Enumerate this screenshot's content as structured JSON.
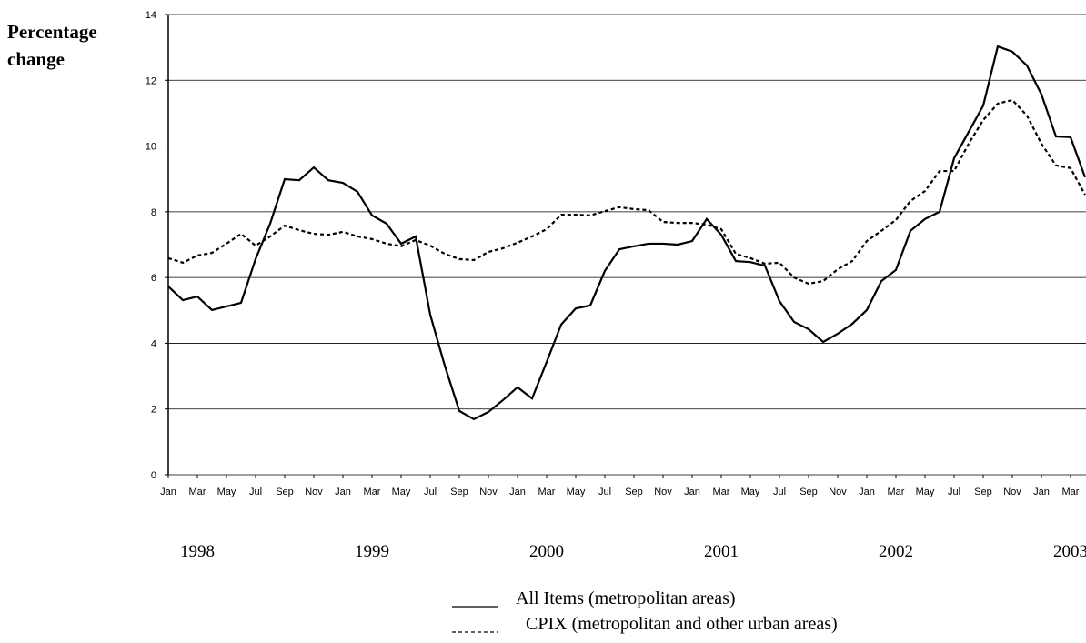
{
  "chart_data": {
    "type": "line",
    "y_axis_label": "Percentage change",
    "categories": [
      "Jan",
      null,
      "Mar",
      null,
      "May",
      null,
      "Jul",
      null,
      "Sep",
      null,
      "Nov",
      null,
      "Jan",
      null,
      "Mar",
      null,
      "May",
      null,
      "Jul",
      null,
      "Sep",
      null,
      "Nov",
      null,
      "Jan",
      null,
      "Mar",
      null,
      "May",
      null,
      "Jul",
      null,
      "Sep",
      null,
      "Nov",
      null,
      "Jan",
      null,
      "Mar",
      null,
      "May",
      null,
      "Jul",
      null,
      "Sep",
      null,
      "Nov",
      null,
      "Jan",
      null,
      "Mar",
      null,
      "May",
      null,
      "Jul",
      null,
      "Sep",
      null,
      "Nov",
      null,
      "Jan",
      null,
      "Mar",
      null
    ],
    "years": [
      "1998",
      "1999",
      "2000",
      "2001",
      "2002",
      "2003"
    ],
    "series": [
      {
        "name": "All Items (metropolitan areas)",
        "color": "#000000",
        "dashed": false,
        "values": [
          5.73,
          5.31,
          5.42,
          5.01,
          5.12,
          5.23,
          6.56,
          7.64,
          8.99,
          8.96,
          9.35,
          8.96,
          8.88,
          8.61,
          7.89,
          7.64,
          7.03,
          7.25,
          4.87,
          3.32,
          1.94,
          1.69,
          1.91,
          2.27,
          2.66,
          2.32,
          3.43,
          4.57,
          5.06,
          5.15,
          6.2,
          6.86,
          6.95,
          7.03,
          7.03,
          7.0,
          7.11,
          7.78,
          7.3,
          6.5,
          6.47,
          6.36,
          5.28,
          4.65,
          4.43,
          4.04,
          4.29,
          4.59,
          5.01,
          5.89,
          6.23,
          7.42,
          7.78,
          8.0,
          9.63,
          10.43,
          11.23,
          13.03,
          12.87,
          12.45,
          11.57,
          10.29,
          10.27,
          9.05
        ]
      },
      {
        "name": "CPIX (metropolitan and other urban areas)",
        "color": "#000000",
        "dashed": true,
        "values": [
          6.59,
          6.45,
          6.67,
          6.75,
          7.03,
          7.33,
          6.97,
          7.25,
          7.58,
          7.44,
          7.33,
          7.3,
          7.39,
          7.25,
          7.17,
          7.03,
          6.95,
          7.14,
          6.97,
          6.72,
          6.56,
          6.53,
          6.78,
          6.89,
          7.06,
          7.25,
          7.47,
          7.91,
          7.91,
          7.89,
          8.02,
          8.14,
          8.08,
          8.05,
          7.69,
          7.66,
          7.66,
          7.61,
          7.47,
          6.72,
          6.59,
          6.42,
          6.45,
          6.0,
          5.81,
          5.89,
          6.25,
          6.5,
          7.11,
          7.42,
          7.75,
          8.33,
          8.63,
          9.24,
          9.24,
          10.07,
          10.79,
          11.29,
          11.4,
          10.93,
          10.07,
          9.41,
          9.33,
          8.52
        ]
      }
    ],
    "ylim": [
      0,
      14
    ],
    "yticks": [
      0,
      2,
      4,
      6,
      8,
      10,
      12,
      14
    ],
    "grid": true
  }
}
